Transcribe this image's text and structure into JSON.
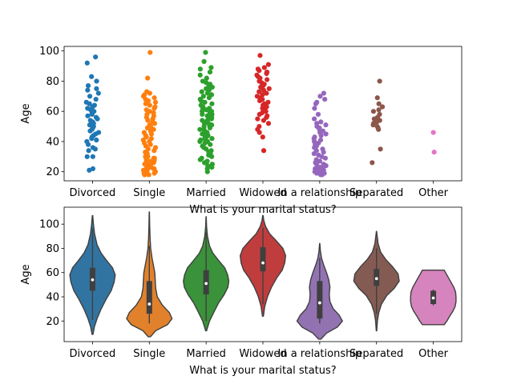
{
  "chart_data": [
    {
      "type": "scatter",
      "subtype": "strip",
      "xlabel": "What is your marital status?",
      "ylabel": "Age",
      "categories": [
        "Divorced",
        "Single",
        "Married",
        "Widowed",
        "In a relationship",
        "Separated",
        "Other"
      ],
      "yticks": [
        20,
        40,
        60,
        80,
        100
      ],
      "ylim": [
        14,
        103
      ],
      "colors": [
        "#1f77b4",
        "#ff7f0e",
        "#2ca02c",
        "#d62728",
        "#9467bd",
        "#8c564b",
        "#e377c2"
      ],
      "series": [
        {
          "category": "Divorced",
          "values": [
            96,
            92,
            83,
            80,
            77,
            75,
            74,
            72,
            70,
            68,
            66,
            65,
            64,
            63,
            62,
            61,
            60,
            59,
            58,
            57,
            56,
            55,
            54,
            53,
            52,
            51,
            50,
            49,
            48,
            47,
            46,
            45,
            44,
            43,
            42,
            41,
            40,
            38,
            36,
            35,
            34,
            30,
            30,
            22,
            21
          ]
        },
        {
          "category": "Single",
          "values": [
            99,
            82,
            73,
            72,
            71,
            70,
            69,
            68,
            67,
            66,
            65,
            64,
            63,
            62,
            61,
            60,
            59,
            58,
            57,
            56,
            55,
            54,
            53,
            52,
            51,
            50,
            49,
            48,
            47,
            46,
            45,
            44,
            43,
            42,
            41,
            40,
            39,
            38,
            37,
            36,
            35,
            34,
            33,
            32,
            31,
            30,
            30,
            29,
            29,
            28,
            28,
            27,
            27,
            26,
            26,
            25,
            25,
            24,
            24,
            24,
            23,
            23,
            23,
            22,
            22,
            22,
            21,
            21,
            21,
            20,
            20,
            20,
            19,
            19,
            19,
            18,
            18,
            18
          ]
        },
        {
          "category": "Married",
          "values": [
            99,
            93,
            89,
            88,
            86,
            84,
            82,
            80,
            79,
            78,
            77,
            76,
            75,
            74,
            73,
            72,
            71,
            70,
            69,
            68,
            67,
            66,
            65,
            64,
            63,
            62,
            62,
            61,
            60,
            60,
            59,
            58,
            58,
            57,
            56,
            56,
            55,
            54,
            54,
            53,
            52,
            52,
            51,
            50,
            50,
            49,
            48,
            48,
            47,
            46,
            46,
            45,
            44,
            44,
            43,
            42,
            42,
            41,
            40,
            40,
            39,
            38,
            37,
            36,
            35,
            34,
            33,
            32,
            31,
            30,
            29,
            28,
            27,
            26,
            25,
            24,
            23,
            22,
            20
          ]
        },
        {
          "category": "Widowed",
          "values": [
            97,
            91,
            89,
            88,
            87,
            86,
            85,
            84,
            83,
            82,
            81,
            80,
            79,
            78,
            77,
            76,
            75,
            74,
            73,
            72,
            71,
            70,
            69,
            68,
            67,
            66,
            65,
            64,
            63,
            62,
            61,
            60,
            59,
            58,
            57,
            56,
            55,
            54,
            52,
            50,
            48,
            46,
            43,
            34
          ]
        },
        {
          "category": "In a relationship",
          "values": [
            72,
            70,
            68,
            66,
            65,
            62,
            58,
            55,
            53,
            52,
            51,
            50,
            49,
            48,
            47,
            46,
            45,
            44,
            43,
            42,
            41,
            40,
            39,
            38,
            37,
            36,
            35,
            34,
            33,
            32,
            31,
            30,
            29,
            28,
            27,
            26,
            26,
            25,
            25,
            24,
            24,
            23,
            23,
            22,
            22,
            22,
            21,
            21,
            21,
            20,
            20,
            20,
            19,
            19,
            19,
            18,
            18
          ]
        },
        {
          "category": "Separated",
          "values": [
            80,
            69,
            65,
            63,
            61,
            60,
            58,
            56,
            55,
            54,
            53,
            52,
            51,
            50,
            49,
            48,
            35,
            26
          ]
        },
        {
          "category": "Other",
          "values": [
            46,
            33
          ]
        }
      ]
    },
    {
      "type": "violin",
      "xlabel": "What is your marital status?",
      "ylabel": "Age",
      "categories": [
        "Divorced",
        "Single",
        "Married",
        "Widowed",
        "In a relationship",
        "Separated",
        "Other"
      ],
      "yticks": [
        20,
        40,
        60,
        80,
        100
      ],
      "ylim": [
        3,
        114
      ],
      "colors": [
        "#3274a1",
        "#e1812c",
        "#3a923a",
        "#c03d3e",
        "#9372b2",
        "#845b53",
        "#d684bd"
      ],
      "violins": [
        {
          "category": "Divorced",
          "min": 9,
          "max": 107,
          "q1": 45,
          "median": 54,
          "q3": 64,
          "whisker_low": 21,
          "whisker_high": 96,
          "density": [
            [
              9,
              0.02
            ],
            [
              15,
              0.08
            ],
            [
              22,
              0.2
            ],
            [
              30,
              0.38
            ],
            [
              38,
              0.6
            ],
            [
              45,
              0.82
            ],
            [
              52,
              0.95
            ],
            [
              58,
              1.0
            ],
            [
              64,
              0.88
            ],
            [
              70,
              0.62
            ],
            [
              76,
              0.38
            ],
            [
              83,
              0.2
            ],
            [
              92,
              0.09
            ],
            [
              100,
              0.04
            ],
            [
              107,
              0.01
            ]
          ]
        },
        {
          "category": "Single",
          "min": 7,
          "max": 110,
          "q1": 26,
          "median": 34,
          "q3": 53,
          "whisker_low": 18,
          "whisker_high": 82,
          "density": [
            [
              7,
              0.05
            ],
            [
              12,
              0.28
            ],
            [
              17,
              0.8
            ],
            [
              22,
              1.0
            ],
            [
              27,
              0.88
            ],
            [
              33,
              0.58
            ],
            [
              40,
              0.35
            ],
            [
              47,
              0.28
            ],
            [
              54,
              0.26
            ],
            [
              60,
              0.24
            ],
            [
              66,
              0.18
            ],
            [
              72,
              0.12
            ],
            [
              80,
              0.06
            ],
            [
              90,
              0.03
            ],
            [
              100,
              0.015
            ],
            [
              110,
              0.005
            ]
          ]
        },
        {
          "category": "Married",
          "min": 12,
          "max": 106,
          "q1": 42,
          "median": 51,
          "q3": 62,
          "whisker_low": 20,
          "whisker_high": 93,
          "density": [
            [
              12,
              0.02
            ],
            [
              20,
              0.15
            ],
            [
              28,
              0.36
            ],
            [
              35,
              0.55
            ],
            [
              42,
              0.8
            ],
            [
              48,
              0.96
            ],
            [
              53,
              1.0
            ],
            [
              58,
              0.95
            ],
            [
              64,
              0.82
            ],
            [
              70,
              0.55
            ],
            [
              76,
              0.3
            ],
            [
              82,
              0.15
            ],
            [
              90,
              0.06
            ],
            [
              98,
              0.02
            ],
            [
              106,
              0.005
            ]
          ]
        },
        {
          "category": "Widowed",
          "min": 24,
          "max": 107,
          "q1": 61,
          "median": 68,
          "q3": 81,
          "whisker_low": 34,
          "whisker_high": 97,
          "density": [
            [
              24,
              0.02
            ],
            [
              32,
              0.08
            ],
            [
              40,
              0.2
            ],
            [
              48,
              0.38
            ],
            [
              56,
              0.62
            ],
            [
              62,
              0.85
            ],
            [
              68,
              0.96
            ],
            [
              74,
              1.0
            ],
            [
              80,
              0.88
            ],
            [
              86,
              0.6
            ],
            [
              92,
              0.3
            ],
            [
              98,
              0.12
            ],
            [
              103,
              0.04
            ],
            [
              107,
              0.01
            ]
          ]
        },
        {
          "category": "In a relationship",
          "min": 5,
          "max": 84,
          "q1": 22,
          "median": 35,
          "q3": 53,
          "whisker_low": 18,
          "whisker_high": 72,
          "density": [
            [
              5,
              0.05
            ],
            [
              10,
              0.3
            ],
            [
              15,
              0.78
            ],
            [
              20,
              1.0
            ],
            [
              25,
              0.85
            ],
            [
              30,
              0.6
            ],
            [
              36,
              0.45
            ],
            [
              42,
              0.42
            ],
            [
              48,
              0.45
            ],
            [
              54,
              0.4
            ],
            [
              60,
              0.3
            ],
            [
              66,
              0.18
            ],
            [
              72,
              0.08
            ],
            [
              78,
              0.03
            ],
            [
              84,
              0.005
            ]
          ]
        },
        {
          "category": "Separated",
          "min": 12,
          "max": 94,
          "q1": 49,
          "median": 55,
          "q3": 63,
          "whisker_low": 26,
          "whisker_high": 80,
          "density": [
            [
              12,
              0.01
            ],
            [
              20,
              0.04
            ],
            [
              27,
              0.1
            ],
            [
              34,
              0.22
            ],
            [
              41,
              0.45
            ],
            [
              47,
              0.78
            ],
            [
              53,
              1.0
            ],
            [
              59,
              0.95
            ],
            [
              65,
              0.7
            ],
            [
              71,
              0.4
            ],
            [
              77,
              0.18
            ],
            [
              84,
              0.07
            ],
            [
              94,
              0.005
            ]
          ]
        },
        {
          "category": "Other",
          "min": 17,
          "max": 62,
          "q1": 34,
          "median": 39,
          "q3": 45,
          "whisker_low": 33,
          "whisker_high": 46,
          "density": [
            [
              17,
              0.48
            ],
            [
              20,
              0.6
            ],
            [
              24,
              0.72
            ],
            [
              28,
              0.86
            ],
            [
              32,
              0.96
            ],
            [
              36,
              1.0
            ],
            [
              40,
              1.0
            ],
            [
              44,
              0.98
            ],
            [
              48,
              0.9
            ],
            [
              52,
              0.78
            ],
            [
              56,
              0.66
            ],
            [
              60,
              0.54
            ],
            [
              62,
              0.48
            ]
          ]
        }
      ]
    }
  ]
}
